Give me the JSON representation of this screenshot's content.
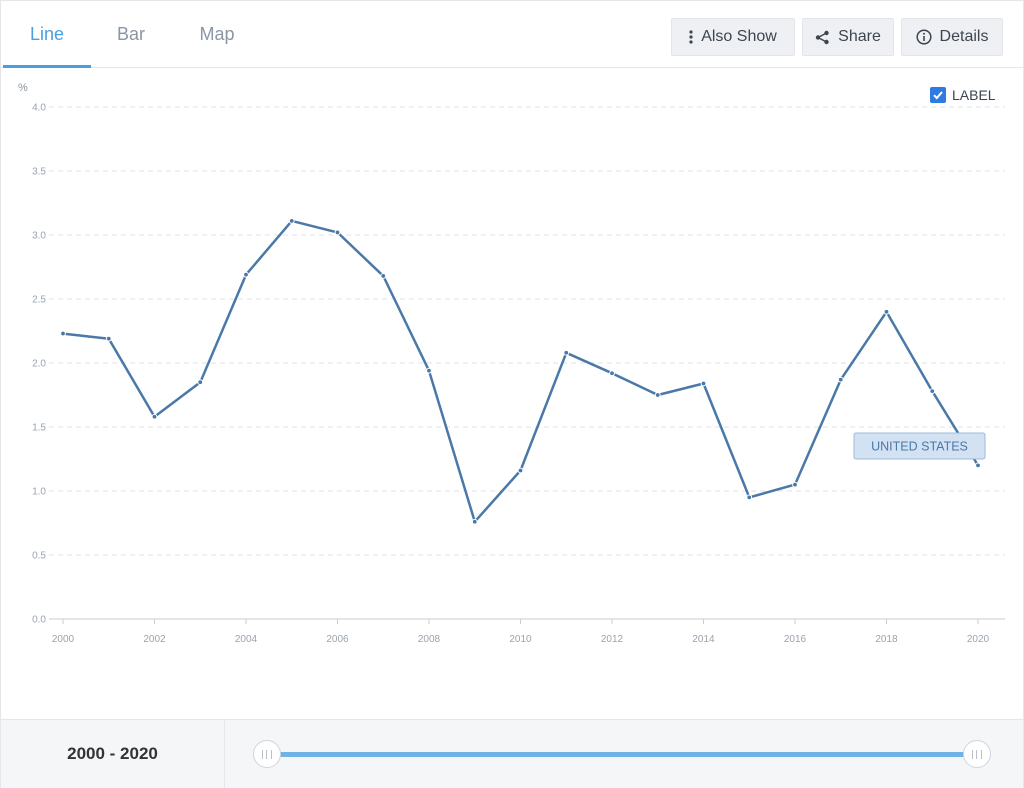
{
  "tabs": [
    {
      "label": "Line",
      "active": true
    },
    {
      "label": "Bar",
      "active": false
    },
    {
      "label": "Map",
      "active": false
    }
  ],
  "toolbar": {
    "also_show": "Also Show",
    "share": "Share",
    "details": "Details"
  },
  "legend": {
    "label": "LABEL",
    "checked": true
  },
  "range_label": "2000 - 2020",
  "colors": {
    "accent": "#4a9fe0",
    "series": "#4a78a8",
    "checkbox": "#2e7be3",
    "slider": "#6fb2e6"
  },
  "chart_data": {
    "type": "line",
    "ylabel": "%",
    "ylim": [
      0,
      4
    ],
    "yticks": [
      "0.0",
      "0.5",
      "1.0",
      "1.5",
      "2.0",
      "2.5",
      "3.0",
      "3.5",
      "4.0"
    ],
    "xlim": [
      2000,
      2020
    ],
    "xticks": [
      "2000",
      "2002",
      "2004",
      "2006",
      "2008",
      "2010",
      "2012",
      "2014",
      "2016",
      "2018",
      "2020"
    ],
    "grid": true,
    "x": [
      2000,
      2001,
      2002,
      2003,
      2004,
      2005,
      2006,
      2007,
      2008,
      2009,
      2010,
      2011,
      2012,
      2013,
      2014,
      2015,
      2016,
      2017,
      2018,
      2019,
      2020
    ],
    "series": [
      {
        "name": "UNITED STATES",
        "values": [
          2.23,
          2.19,
          1.58,
          1.85,
          2.69,
          3.11,
          3.02,
          2.68,
          1.94,
          0.76,
          1.16,
          2.08,
          1.92,
          1.75,
          1.84,
          0.95,
          1.05,
          1.87,
          2.4,
          1.78,
          1.2
        ]
      }
    ]
  }
}
